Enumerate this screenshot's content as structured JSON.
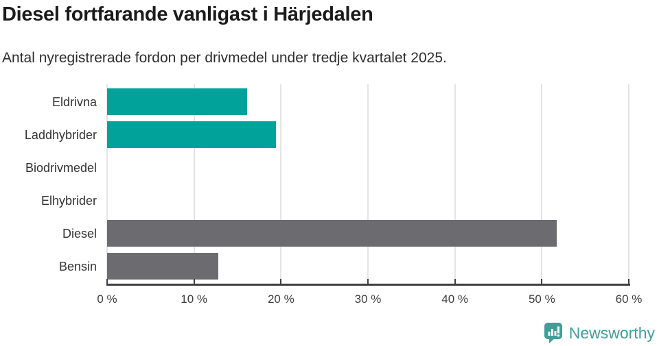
{
  "header": {
    "title": "Diesel fortfarande vanligast i Härjedalen",
    "subtitle": "Antal nyregistrerade fordon per drivmedel under tredje kvartalet 2025."
  },
  "chart_data": {
    "type": "bar",
    "orientation": "horizontal",
    "title": "Diesel fortfarande vanligast i Härjedalen",
    "subtitle": "Antal nyregistrerade fordon per drivmedel under tredje kvartalet 2025.",
    "categories": [
      "Eldrivna",
      "Laddhybrider",
      "Biodrivmedel",
      "Elhybrider",
      "Diesel",
      "Bensin"
    ],
    "values": [
      16.1,
      19.4,
      0,
      0,
      51.7,
      12.8
    ],
    "unit": "%",
    "bar_colors": [
      "#00a29a",
      "#00a29a",
      "#00a29a",
      "#00a29a",
      "#6c6b70",
      "#6c6b70"
    ],
    "xlabel": "",
    "ylabel": "",
    "xlim": [
      0,
      60
    ],
    "x_ticks": [
      "0 %",
      "10 %",
      "20 %",
      "30 %",
      "40 %",
      "50 %",
      "60 %"
    ],
    "grid": "vertical-only",
    "legend": "none"
  },
  "footer": {
    "brand": "Newsworthy",
    "logo_icon": "newsworthy-speech-bubble-bar-chart-icon"
  },
  "colors": {
    "teal_bar": "#00a29a",
    "gray_bar": "#6c6b70",
    "grid": "#e4e4e4",
    "axis": "#3e3e3e",
    "category_label": "#333333",
    "title": "#1b1b1b",
    "subtitle": "#2e2e2e",
    "brand_teal": "#3f9f99"
  }
}
